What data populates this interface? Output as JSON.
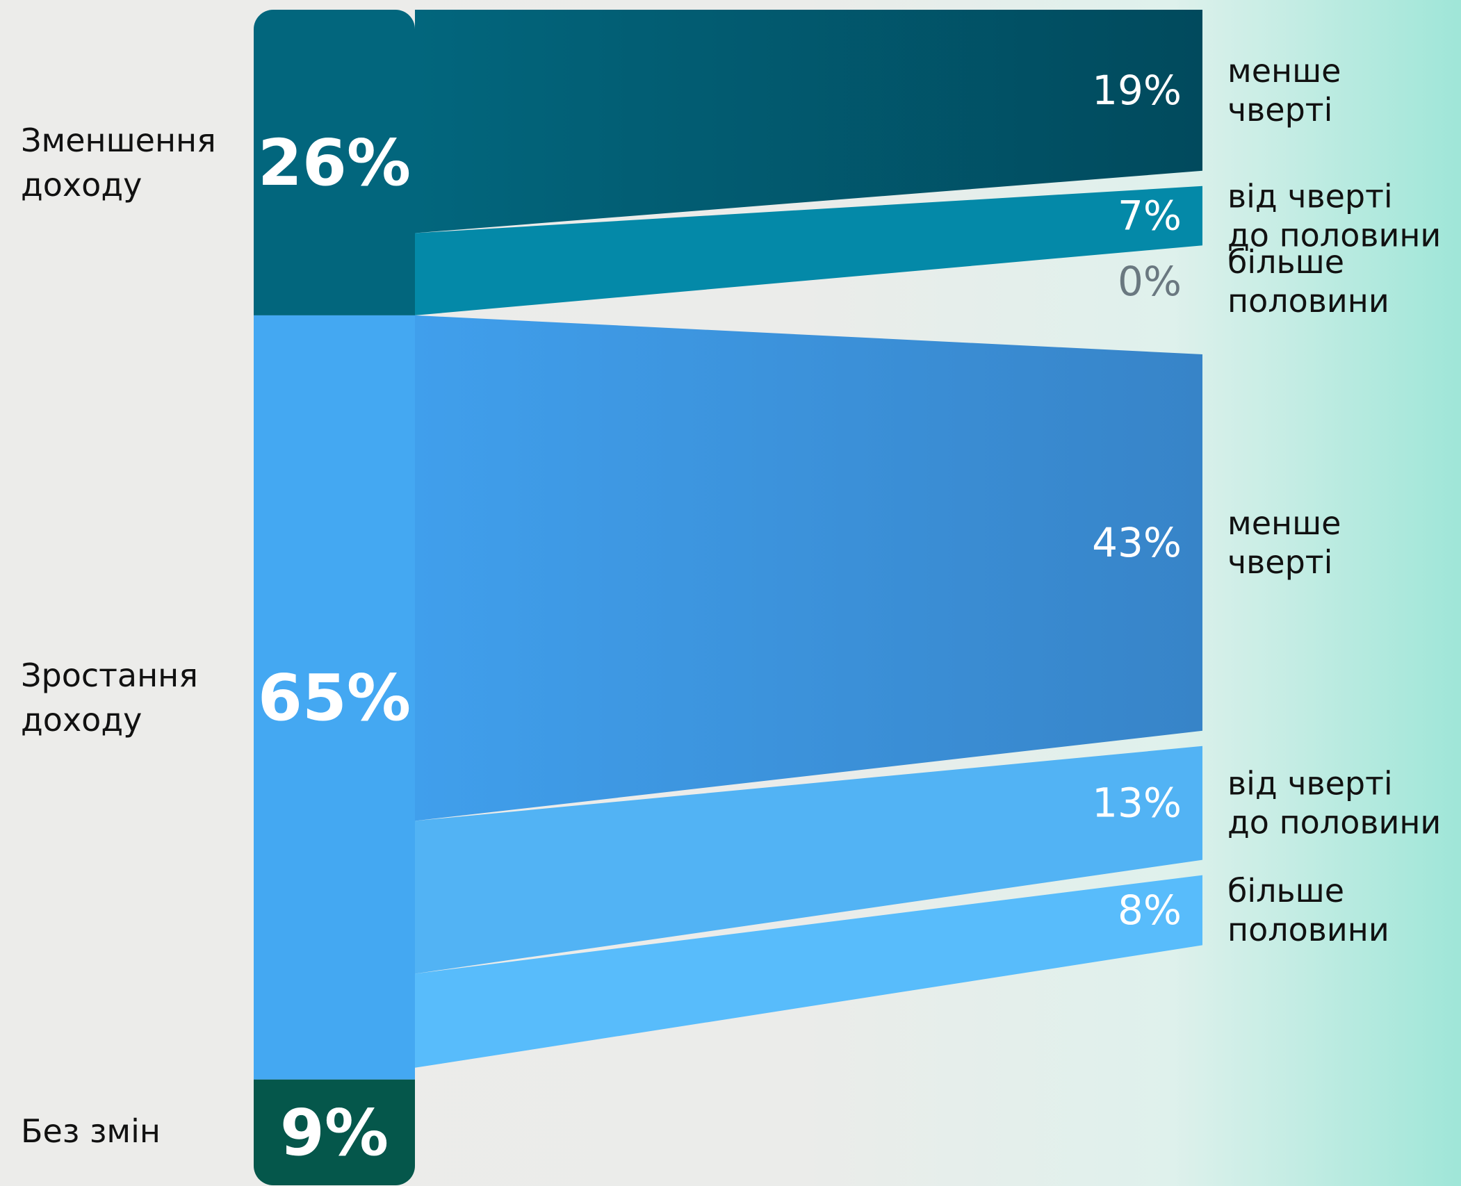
{
  "chart_data": {
    "type": "sankey",
    "title": "",
    "categories": [
      {
        "label_lines": [
          "Зменшення",
          "доходу"
        ],
        "value": 26,
        "value_label": "26%",
        "color": "#02667d",
        "breakdown": [
          {
            "value": 19,
            "value_label": "19%",
            "label_lines": [
              "менше",
              "чверті"
            ],
            "color": "#01566c"
          },
          {
            "value": 7,
            "value_label": "7%",
            "label_lines": [
              "від чверті",
              "до половини"
            ],
            "color": "#0489a8"
          },
          {
            "value": 0,
            "value_label": "0%",
            "label_lines": [
              "більше",
              "половини"
            ],
            "color": "#6a7880"
          }
        ]
      },
      {
        "label_lines": [
          "Зростання",
          "доходу"
        ],
        "value": 65,
        "value_label": "65%",
        "color": "#44a8f2",
        "breakdown": [
          {
            "value": 43,
            "value_label": "43%",
            "label_lines": [
              "менше",
              "чверті"
            ],
            "color": "#3b92d8"
          },
          {
            "value": 13,
            "value_label": "13%",
            "label_lines": [
              "від чверті",
              "до половини"
            ],
            "color": "#52b3f4"
          },
          {
            "value": 8,
            "value_label": "8%",
            "label_lines": [
              "більше",
              "половини"
            ],
            "color": "#58bcfb"
          }
        ]
      },
      {
        "label_lines": [
          "Без змін"
        ],
        "value": 9,
        "value_label": "9%",
        "color": "#05574b",
        "breakdown": []
      }
    ]
  }
}
